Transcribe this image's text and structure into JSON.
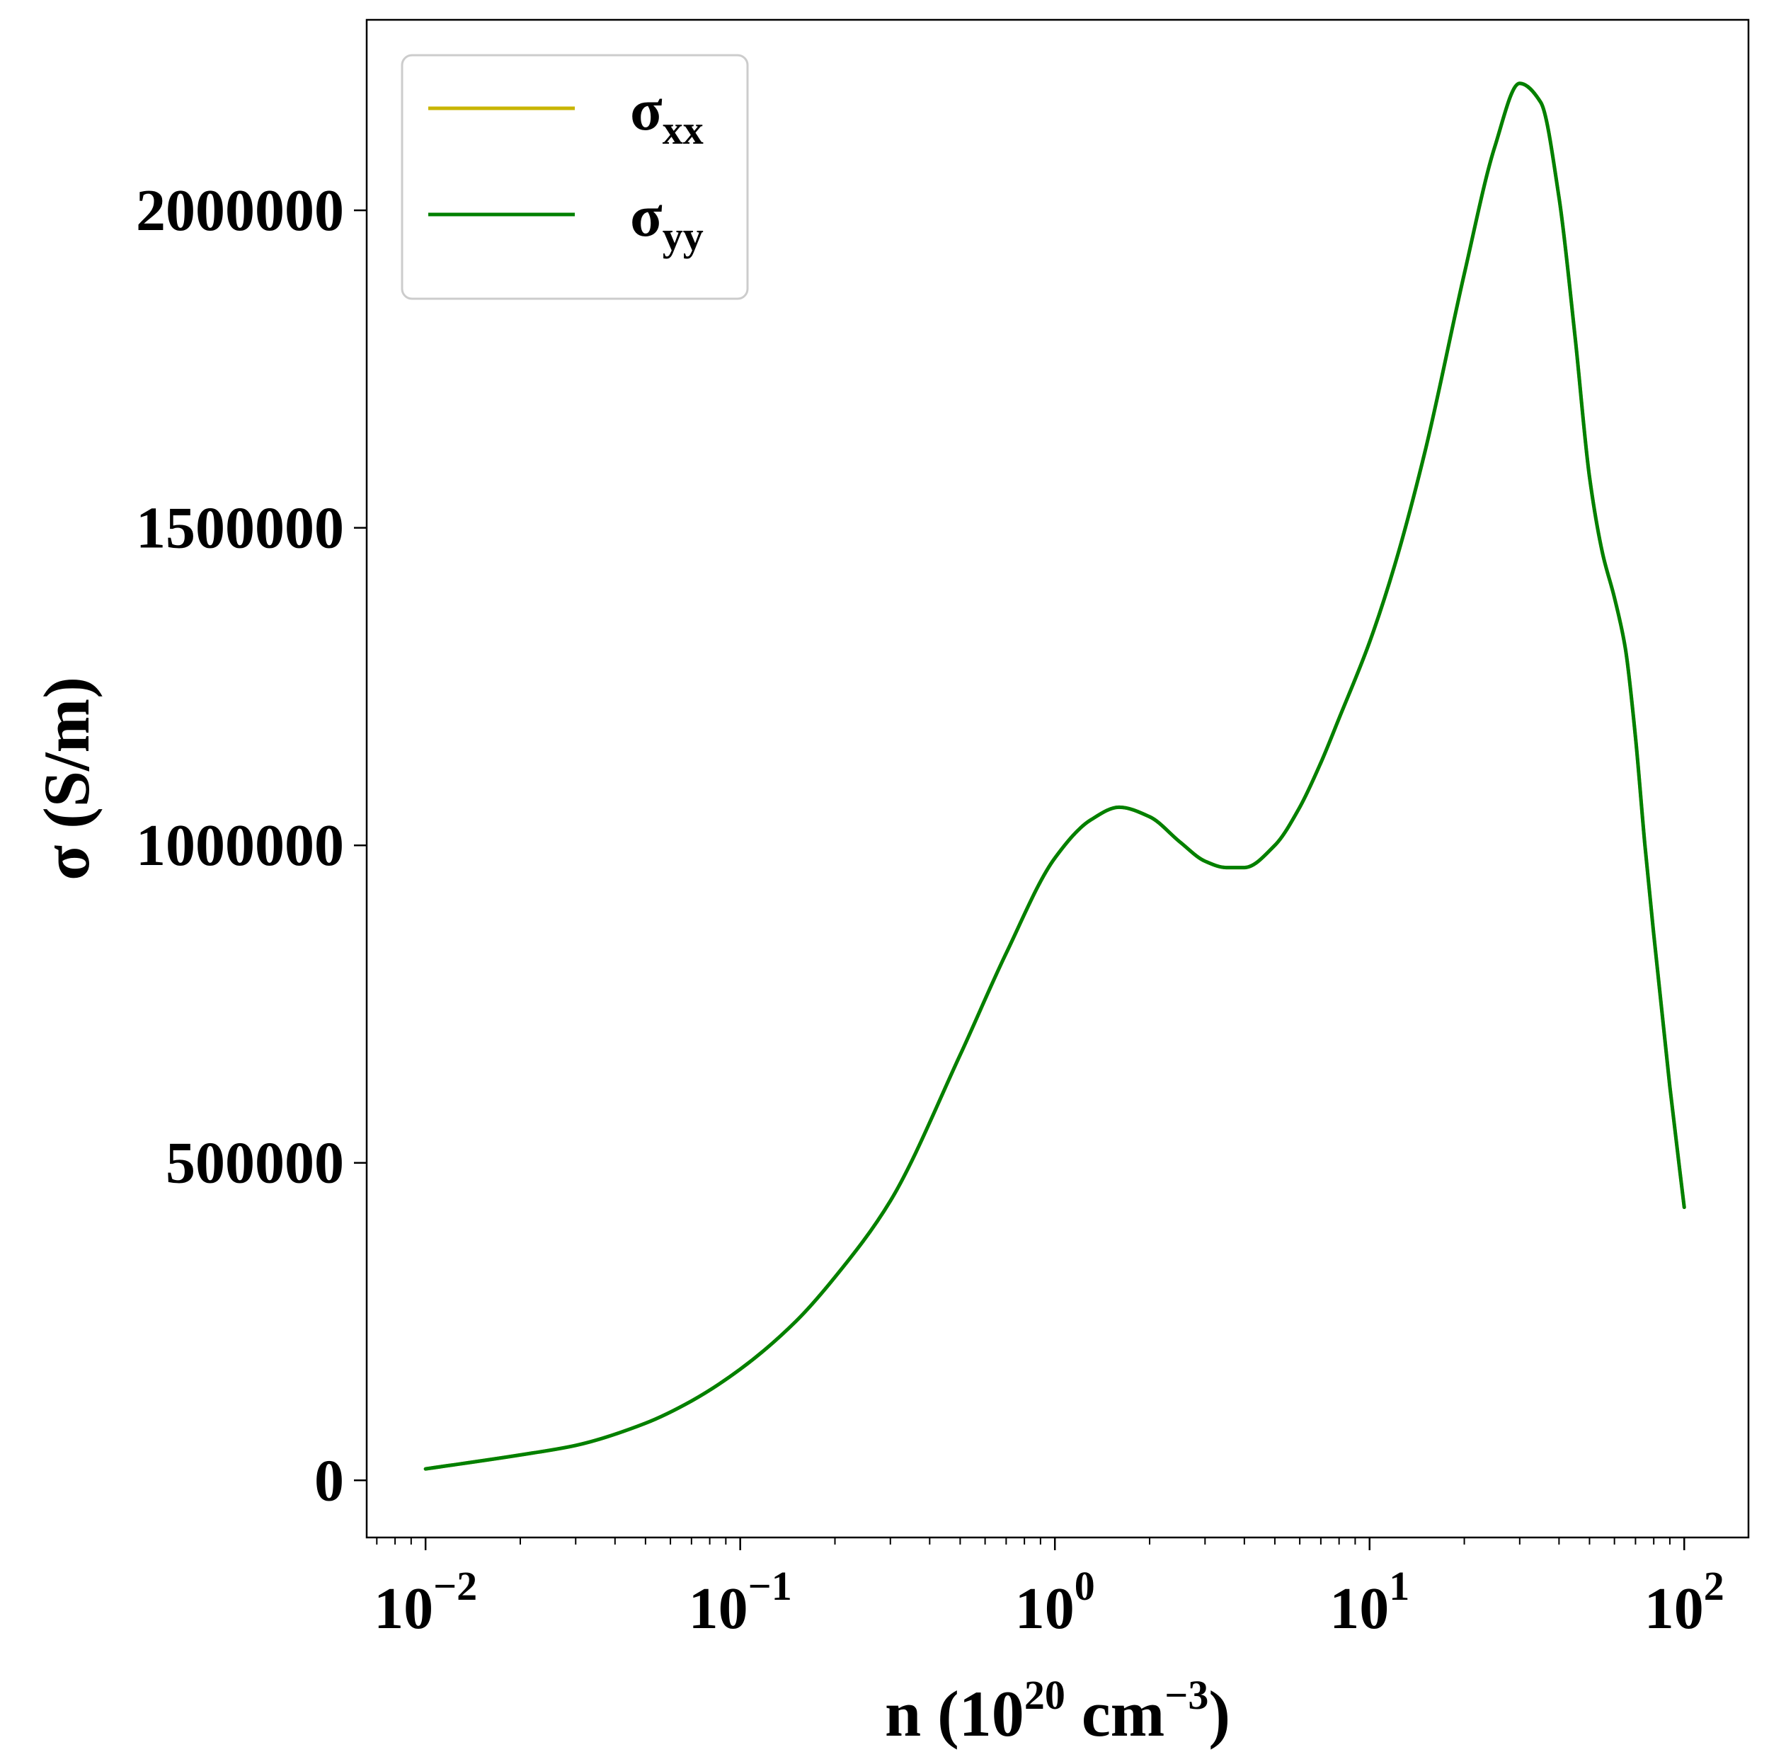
{
  "chart_data": {
    "type": "line",
    "xscale": "log",
    "xlim": [
      0.0065,
      160
    ],
    "ylim": [
      -90000,
      2300000
    ],
    "grid": false,
    "legend_position": "top-left",
    "xlabel": {
      "prefix": "n (10",
      "sup1": "20",
      "mid": " cm",
      "sup2": "−3",
      "suffix": ")"
    },
    "ylabel": "σ (S/m)",
    "x_ticks": [
      {
        "value": 0.01,
        "base": "10",
        "exp": "−2"
      },
      {
        "value": 0.1,
        "base": "10",
        "exp": "−1"
      },
      {
        "value": 1,
        "base": "10",
        "exp": "0"
      },
      {
        "value": 10,
        "base": "10",
        "exp": "1"
      },
      {
        "value": 100,
        "base": "10",
        "exp": "2"
      }
    ],
    "y_ticks": [
      {
        "value": 0,
        "label": "0"
      },
      {
        "value": 500000,
        "label": "500000"
      },
      {
        "value": 1000000,
        "label": "1000000"
      },
      {
        "value": 1500000,
        "label": "1500000"
      },
      {
        "value": 2000000,
        "label": "2000000"
      }
    ],
    "series": [
      {
        "name": "σxx",
        "name_base": "σ",
        "name_sub": "xx",
        "color": "#c8b400",
        "x": [
          0.01,
          0.02,
          0.03,
          0.05,
          0.07,
          0.1,
          0.15,
          0.2,
          0.3,
          0.5,
          0.7,
          1.0,
          1.3,
          1.6,
          2.0,
          2.5,
          3.0,
          3.5,
          4.0,
          5.0,
          6.0,
          7.0,
          8.0,
          10,
          12,
          15,
          20,
          25,
          30,
          35,
          40,
          45,
          50,
          55,
          60,
          65,
          70,
          75,
          80,
          90,
          100
        ],
        "y": [
          18000,
          40000,
          55000,
          90000,
          125000,
          175000,
          250000,
          320000,
          440000,
          670000,
          830000,
          980000,
          1040000,
          1060000,
          1045000,
          1005000,
          975000,
          965000,
          965000,
          1000000,
          1060000,
          1130000,
          1200000,
          1320000,
          1440000,
          1620000,
          1900000,
          2100000,
          2200000,
          2170000,
          2020000,
          1800000,
          1580000,
          1460000,
          1390000,
          1310000,
          1170000,
          1000000,
          860000,
          620000,
          430000
        ]
      },
      {
        "name": "σyy",
        "name_base": "σ",
        "name_sub": "yy",
        "color": "#008000",
        "x": [
          0.01,
          0.02,
          0.03,
          0.05,
          0.07,
          0.1,
          0.15,
          0.2,
          0.3,
          0.5,
          0.7,
          1.0,
          1.3,
          1.6,
          2.0,
          2.5,
          3.0,
          3.5,
          4.0,
          5.0,
          6.0,
          7.0,
          8.0,
          10,
          12,
          15,
          20,
          25,
          30,
          35,
          40,
          45,
          50,
          55,
          60,
          65,
          70,
          75,
          80,
          90,
          100
        ],
        "y": [
          18000,
          40000,
          55000,
          90000,
          125000,
          175000,
          250000,
          320000,
          440000,
          670000,
          830000,
          980000,
          1040000,
          1060000,
          1045000,
          1005000,
          975000,
          965000,
          965000,
          1000000,
          1060000,
          1130000,
          1200000,
          1320000,
          1440000,
          1620000,
          1900000,
          2100000,
          2200000,
          2170000,
          2020000,
          1800000,
          1580000,
          1460000,
          1390000,
          1310000,
          1170000,
          1000000,
          860000,
          620000,
          430000
        ]
      }
    ]
  }
}
